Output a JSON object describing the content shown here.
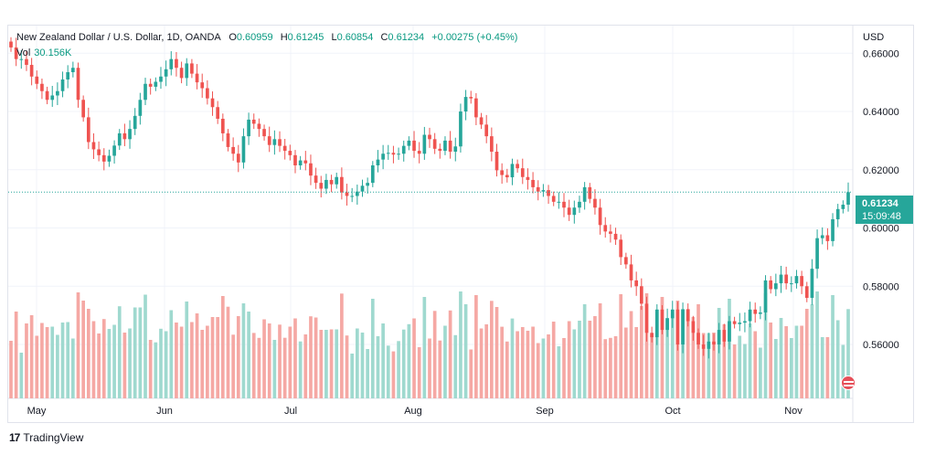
{
  "legend": {
    "symbol": "New Zealand Dollar / U.S. Dollar, 1D, OANDA",
    "o_label": "O",
    "o_value": "0.60959",
    "h_label": "H",
    "h_value": "0.61245",
    "l_label": "L",
    "l_value": "0.60854",
    "c_label": "C",
    "c_value": "0.61234",
    "change": "+0.00275 (+0.45%)",
    "vol_label": "Vol",
    "vol_value": "30.156K"
  },
  "axis": {
    "currency": "USD"
  },
  "last_price": {
    "price": "0.61234",
    "countdown": "15:09:48"
  },
  "footer": {
    "brand": "TradingView",
    "logo_mark": "17"
  },
  "colors": {
    "up": "#26a69a",
    "down": "#ef5350",
    "vol_up": "#9fd9cf",
    "vol_down": "#f5a8a4",
    "grid": "#f0f3fa"
  },
  "chart_data": {
    "type": "candlestick",
    "title": "New Zealand Dollar / U.S. Dollar, 1D, OANDA",
    "y_ticks": [
      "0.66000",
      "0.64000",
      "0.62000",
      "0.60000",
      "0.58000",
      "0.56000"
    ],
    "y_range": [
      0.5415,
      0.6695
    ],
    "x_labels": [
      "May",
      "Jun",
      "Jul",
      "Aug",
      "Sep",
      "Oct",
      "Nov"
    ],
    "last_close": 0.61234,
    "closes": [
      0.662,
      0.658,
      0.658,
      0.656,
      0.652,
      0.6495,
      0.647,
      0.644,
      0.6455,
      0.647,
      0.651,
      0.6535,
      0.655,
      0.644,
      0.638,
      0.6295,
      0.627,
      0.625,
      0.6228,
      0.6248,
      0.6283,
      0.6325,
      0.6305,
      0.634,
      0.6385,
      0.644,
      0.6495,
      0.6485,
      0.6502,
      0.652,
      0.6545,
      0.658,
      0.655,
      0.6515,
      0.6565,
      0.653,
      0.65,
      0.648,
      0.6445,
      0.6415,
      0.6375,
      0.6325,
      0.6278,
      0.6255,
      0.6225,
      0.6315,
      0.6372,
      0.6358,
      0.634,
      0.6315,
      0.6285,
      0.6305,
      0.6282,
      0.6265,
      0.625,
      0.6215,
      0.6232,
      0.6222,
      0.618,
      0.6155,
      0.6135,
      0.6165,
      0.615,
      0.6175,
      0.6122,
      0.611,
      0.611,
      0.6125,
      0.6145,
      0.6155,
      0.6215,
      0.6235,
      0.6255,
      0.6258,
      0.6252,
      0.6255,
      0.6282,
      0.63,
      0.6265,
      0.6255,
      0.632,
      0.6305,
      0.6272,
      0.6265,
      0.63,
      0.6262,
      0.628,
      0.64,
      0.645,
      0.6445,
      0.638,
      0.6355,
      0.6315,
      0.6262,
      0.6198,
      0.6182,
      0.6174,
      0.622,
      0.6205,
      0.6175,
      0.6165,
      0.614,
      0.6125,
      0.613,
      0.611,
      0.609,
      0.609,
      0.607,
      0.6045,
      0.607,
      0.609,
      0.614,
      0.61,
      0.607,
      0.601,
      0.5988,
      0.598,
      0.596,
      0.59,
      0.5875,
      0.582,
      0.58,
      0.574,
      0.564,
      0.5625,
      0.572,
      0.565,
      0.569,
      0.572,
      0.56,
      0.572,
      0.568,
      0.564,
      0.56,
      0.5585,
      0.561,
      0.56,
      0.565,
      0.561,
      0.568,
      0.567,
      0.5675,
      0.568,
      0.572,
      0.5705,
      0.571,
      0.582,
      0.579,
      0.581,
      0.584,
      0.581,
      0.581,
      0.5835,
      0.58,
      0.576,
      0.586,
      0.5965,
      0.5975,
      0.5955,
      0.603,
      0.6065,
      0.608,
      0.6123
    ],
    "volume_colors_note": "volume bars colored by candle direction",
    "vol_axis_max": 1.0
  }
}
